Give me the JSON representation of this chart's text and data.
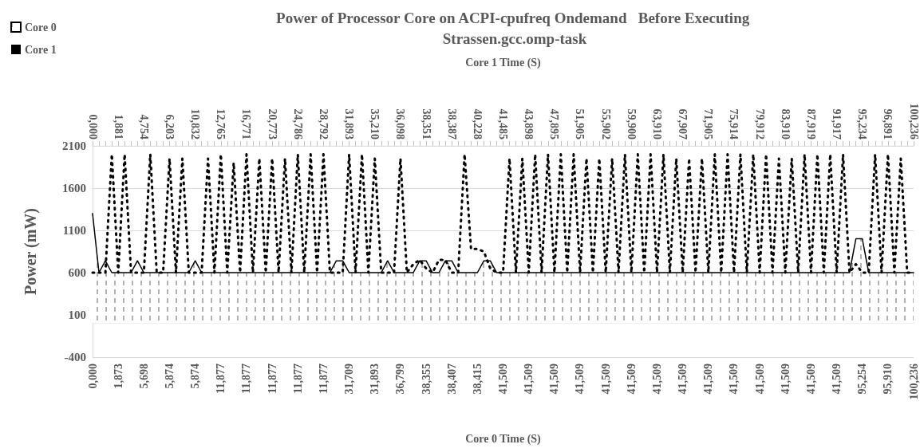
{
  "chart_data": {
    "type": "area",
    "title": "Power of Processor Core on ACPI-cpufreq Ondemand   Before Executing Strassen.gcc.omp-task",
    "xlabel": "Core 0 Time (S)",
    "x2label": "Core 1 Time (S)",
    "ylabel": "Power (mW)",
    "categories": [
      "0,000",
      null,
      null,
      null,
      "1,873",
      null,
      null,
      null,
      "5,698",
      null,
      null,
      null,
      "5,874",
      null,
      null,
      null,
      "5,874",
      null,
      null,
      null,
      "11,877",
      null,
      null,
      null,
      "11,877",
      null,
      null,
      null,
      "11,877",
      null,
      null,
      null,
      "11,877",
      null,
      null,
      null,
      "11,877",
      null,
      null,
      null,
      "31,709",
      null,
      null,
      null,
      "31,893",
      null,
      null,
      null,
      "36,799",
      null,
      null,
      null,
      "38,355",
      null,
      null,
      null,
      "38,407",
      null,
      null,
      null,
      "38,415",
      null,
      null,
      null,
      "41,509",
      null,
      null,
      null,
      "41,509",
      null,
      null,
      null,
      "41,509",
      null,
      null,
      null,
      "41,509",
      null,
      null,
      null,
      "41,509",
      null,
      null,
      null,
      "41,509",
      null,
      null,
      null,
      "41,509",
      null,
      null,
      null,
      "41,509",
      null,
      null,
      null,
      "41,509",
      null,
      null,
      null,
      "41,509",
      null,
      null,
      null,
      "41,509",
      null,
      null,
      null,
      "41,509",
      null,
      null,
      null,
      "41,509",
      null,
      null,
      null,
      "41,509",
      null,
      null,
      null,
      "95,254",
      null,
      null,
      null,
      "95,910",
      null,
      null,
      null,
      "100,236"
    ],
    "annotations": [
      "0,000",
      "1,881",
      "4,754",
      "6,203",
      "10,832",
      "12,765",
      "16,771",
      "20,773",
      "24,786",
      "28,792",
      "31,893",
      "35,210",
      "36,098",
      "38,351",
      "38,387",
      "40,228",
      "41,485",
      "43,898",
      "47,895",
      "51,905",
      "55,902",
      "59,900",
      "63,910",
      "67,907",
      "71,905",
      "75,914",
      "79,912",
      "83,910",
      "87,919",
      "91,917",
      "95,234",
      "96,891",
      "100,236"
    ],
    "series": [
      {
        "name": "Core 0",
        "color": "#000000",
        "line_style": "solid",
        "values": [
          1300,
          600,
          740,
          600,
          600,
          600,
          600,
          740,
          600,
          600,
          600,
          600,
          600,
          600,
          600,
          600,
          740,
          600,
          600,
          600,
          600,
          600,
          600,
          600,
          600,
          600,
          600,
          600,
          600,
          600,
          600,
          600,
          600,
          600,
          600,
          600,
          600,
          600,
          740,
          740,
          600,
          600,
          600,
          600,
          600,
          600,
          740,
          600,
          600,
          600,
          600,
          740,
          740,
          600,
          600,
          740,
          740,
          600,
          600,
          600,
          600,
          740,
          740,
          600,
          600,
          600,
          600,
          600,
          600,
          600,
          600,
          600,
          600,
          600,
          600,
          600,
          600,
          600,
          600,
          600,
          600,
          600,
          600,
          600,
          600,
          600,
          600,
          600,
          600,
          600,
          600,
          600,
          600,
          600,
          600,
          600,
          600,
          600,
          600,
          600,
          600,
          600,
          600,
          600,
          600,
          600,
          600,
          600,
          600,
          600,
          600,
          600,
          600,
          600,
          600,
          600,
          600,
          600,
          600,
          1000,
          1000,
          600,
          600,
          600,
          600,
          600,
          600,
          600,
          600
        ]
      },
      {
        "name": "Core 1",
        "type": "line",
        "color": "#000000",
        "line_style": "dotted",
        "values": [
          600,
          600,
          600,
          2000,
          600,
          2000,
          600,
          600,
          600,
          2000,
          600,
          600,
          1950,
          600,
          1950,
          600,
          600,
          600,
          1950,
          600,
          2000,
          600,
          1900,
          600,
          2000,
          600,
          1950,
          600,
          1950,
          600,
          1950,
          600,
          2000,
          600,
          2000,
          600,
          2000,
          600,
          600,
          600,
          2000,
          600,
          2000,
          600,
          1950,
          600,
          600,
          600,
          1950,
          600,
          700,
          750,
          650,
          600,
          750,
          750,
          600,
          600,
          2000,
          880,
          880,
          850,
          650,
          600,
          600,
          1950,
          600,
          1950,
          600,
          2000,
          600,
          2000,
          600,
          2000,
          600,
          2000,
          600,
          1950,
          600,
          1950,
          600,
          1950,
          600,
          2000,
          600,
          2000,
          600,
          2000,
          600,
          2000,
          600,
          1950,
          600,
          1950,
          600,
          1950,
          600,
          2000,
          600,
          2000,
          600,
          2000,
          600,
          2000,
          600,
          2000,
          600,
          1950,
          600,
          1950,
          600,
          2000,
          600,
          2000,
          600,
          2000,
          600,
          2000,
          600,
          700,
          600,
          600,
          2000,
          600,
          2000,
          600,
          1950,
          600,
          600
        ]
      }
    ],
    "ylim": [
      -400,
      2100
    ],
    "yticks": [
      -400,
      100,
      600,
      1100,
      1600,
      2100
    ],
    "grid": "y",
    "legend": "top left"
  }
}
